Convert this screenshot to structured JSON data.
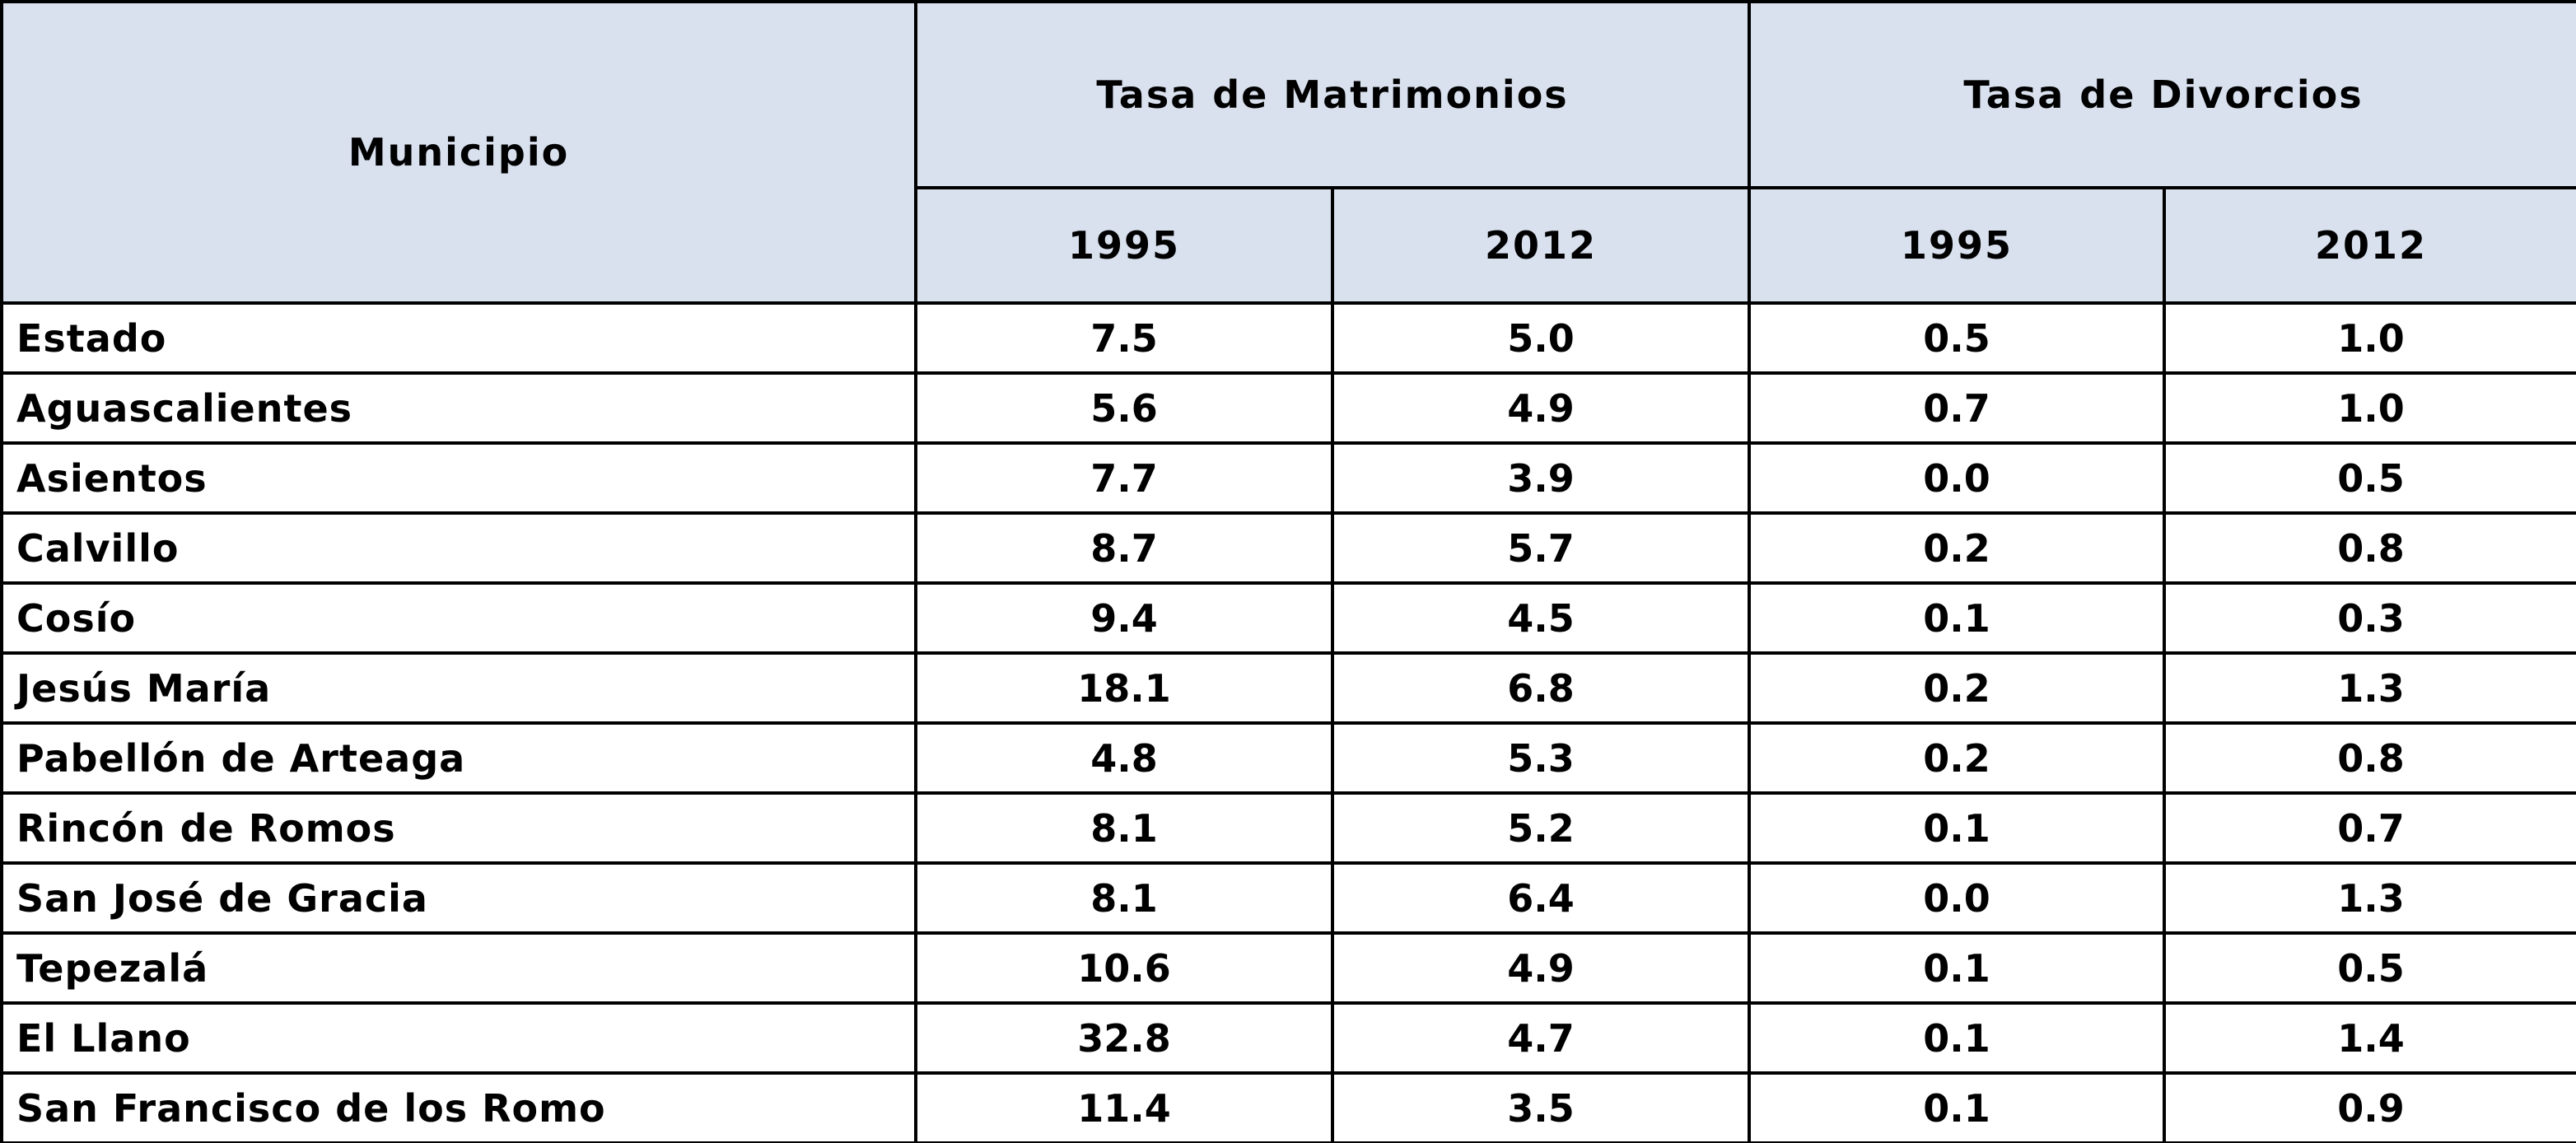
{
  "header": {
    "municipio": "Municipio",
    "groups": [
      {
        "title": "Tasa de Matrimonios",
        "years": [
          "1995",
          "2012"
        ]
      },
      {
        "title": "Tasa de Divorcios",
        "years": [
          "1995",
          "2012"
        ]
      }
    ]
  },
  "table": {
    "rows": [
      [
        "Estado",
        "7.5",
        "5.0",
        "0.5",
        "1.0"
      ],
      [
        "Aguascalientes",
        "5.6",
        "4.9",
        "0.7",
        "1.0"
      ],
      [
        "Asientos",
        "7.7",
        "3.9",
        "0.0",
        "0.5"
      ],
      [
        "Calvillo",
        "8.7",
        "5.7",
        "0.2",
        "0.8"
      ],
      [
        "Cosío",
        "9.4",
        "4.5",
        "0.1",
        "0.3"
      ],
      [
        "Jesús María",
        "18.1",
        "6.8",
        "0.2",
        "1.3"
      ],
      [
        "Pabellón de Arteaga",
        "4.8",
        "5.3",
        "0.2",
        "0.8"
      ],
      [
        "Rincón de Romos",
        "8.1",
        "5.2",
        "0.1",
        "0.7"
      ],
      [
        "San José de Gracia",
        "8.1",
        "6.4",
        "0.0",
        "1.3"
      ],
      [
        "Tepezalá",
        "10.6",
        "4.9",
        "0.1",
        "0.5"
      ],
      [
        "El Llano",
        "32.8",
        "4.7",
        "0.1",
        "1.4"
      ],
      [
        "San Francisco de los Romo",
        "11.4",
        "3.5",
        "0.1",
        "0.9"
      ]
    ]
  }
}
